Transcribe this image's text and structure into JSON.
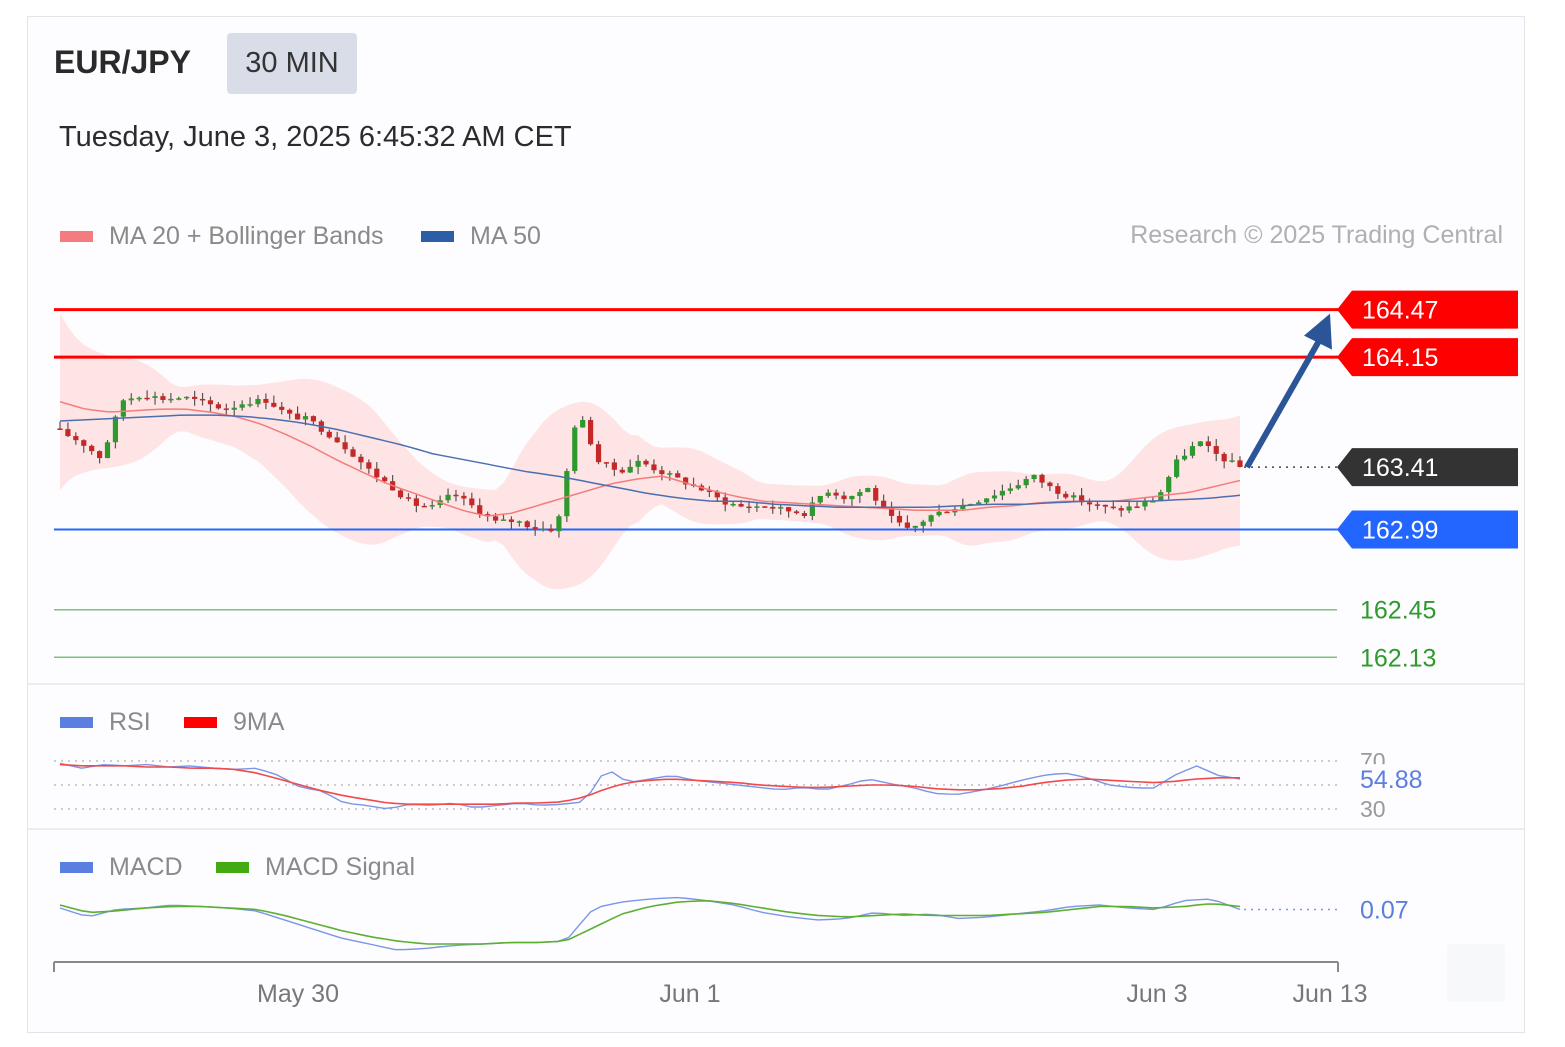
{
  "header": {
    "symbol": "EUR/JPY",
    "timeframe": "30 MIN",
    "timestamp": "Tuesday, June 3, 2025 6:45:32 AM CET",
    "credit": "Research © 2025 Trading Central"
  },
  "legend": {
    "main": [
      {
        "label": "MA 20 + Bollinger Bands",
        "color": "#f47c7c"
      },
      {
        "label": "MA 50",
        "color": "#2c5ea8"
      }
    ],
    "rsi": [
      {
        "label": "RSI",
        "color": "#5b7fe0"
      },
      {
        "label": "9MA",
        "color": "#ff0000"
      }
    ],
    "macd": [
      {
        "label": "MACD",
        "color": "#5b7fe0"
      },
      {
        "label": "MACD Signal",
        "color": "#44aa11"
      }
    ]
  },
  "chart_data": [
    {
      "type": "candlestick",
      "ylim": [
        161.95,
        164.75
      ],
      "x_ticks": [
        "May 30",
        "Jun 1",
        "Jun 3",
        "Jun 13"
      ],
      "last_price": 163.41,
      "levels": [
        {
          "label": "164.47",
          "value": 164.47,
          "kind": "resistance",
          "color": "#ff0000"
        },
        {
          "label": "164.15",
          "value": 164.15,
          "kind": "resistance",
          "color": "#ff0000"
        },
        {
          "label": "163.41",
          "value": 163.41,
          "kind": "last",
          "color": "#333333"
        },
        {
          "label": "162.99",
          "value": 162.99,
          "kind": "pivot",
          "color": "#2266ff"
        },
        {
          "label": "162.45",
          "value": 162.45,
          "kind": "support",
          "color": "#2e9a2e"
        },
        {
          "label": "162.13",
          "value": 162.13,
          "kind": "support",
          "color": "#2e9a2e"
        }
      ],
      "close_path": [
        163.65,
        163.58,
        163.47,
        163.86,
        163.9,
        163.87,
        163.88,
        163.84,
        163.8,
        163.85,
        163.86,
        163.76,
        163.73,
        163.63,
        163.52,
        163.38,
        163.28,
        163.16,
        163.14,
        163.23,
        163.14,
        163.04,
        163.05,
        163.0,
        162.99,
        163.8,
        163.45,
        163.38,
        163.45,
        163.38,
        163.32,
        163.26,
        163.18,
        163.14,
        163.15,
        163.12,
        163.1,
        163.26,
        163.2,
        163.27,
        163.08,
        162.98,
        163.08,
        163.13,
        163.17,
        163.22,
        163.28,
        163.35,
        163.26,
        163.2,
        163.15,
        163.12,
        163.15,
        163.2,
        163.46,
        163.58,
        163.48,
        163.41
      ],
      "ma20_path": [
        163.85,
        163.8,
        163.78,
        163.79,
        163.8,
        163.8,
        163.78,
        163.75,
        163.7,
        163.63,
        163.55,
        163.46,
        163.38,
        163.3,
        163.24,
        163.18,
        163.12,
        163.08,
        163.1,
        163.15,
        163.2,
        163.25,
        163.3,
        163.33,
        163.35,
        163.3,
        163.25,
        163.21,
        163.18,
        163.17,
        163.16,
        163.15,
        163.14,
        163.13,
        163.12,
        163.12,
        163.12,
        163.14,
        163.15,
        163.17,
        163.18,
        163.18,
        163.18,
        163.2,
        163.22,
        163.24,
        163.28,
        163.32
      ],
      "ma50_path": [
        163.72,
        163.73,
        163.74,
        163.75,
        163.76,
        163.76,
        163.75,
        163.73,
        163.7,
        163.66,
        163.61,
        163.56,
        163.5,
        163.46,
        163.42,
        163.38,
        163.35,
        163.31,
        163.27,
        163.23,
        163.2,
        163.18,
        163.18,
        163.16,
        163.15,
        163.14,
        163.14,
        163.14,
        163.14,
        163.15,
        163.16,
        163.16,
        163.17,
        163.18,
        163.18,
        163.18,
        163.19,
        163.2,
        163.22
      ]
    },
    {
      "type": "line",
      "name": "RSI",
      "ylim": [
        25,
        75
      ],
      "y_ticks": [
        "70",
        "30"
      ],
      "last_value_label": "54.88",
      "rsi_path": [
        68,
        64,
        67,
        66,
        67,
        65,
        66,
        64,
        63,
        64,
        58,
        48,
        45,
        35,
        33,
        30,
        34,
        33,
        35,
        31,
        33,
        35,
        33,
        34,
        36,
        64,
        52,
        55,
        58,
        54,
        52,
        50,
        48,
        46,
        48,
        46,
        50,
        55,
        51,
        48,
        43,
        42,
        45,
        49,
        54,
        58,
        60,
        56,
        50,
        48,
        47,
        58,
        66,
        58,
        55
      ],
      "ma9_path": [
        67,
        66,
        66,
        66,
        65,
        65,
        64,
        64,
        63,
        60,
        55,
        50,
        45,
        41,
        38,
        35,
        34,
        34,
        34,
        34,
        34,
        35,
        35,
        36,
        40,
        47,
        52,
        54,
        55,
        54,
        53,
        52,
        50,
        49,
        48,
        48,
        49,
        50,
        50,
        49,
        47,
        46,
        46,
        47,
        49,
        52,
        54,
        55,
        54,
        53,
        52,
        53,
        55,
        56,
        56
      ]
    },
    {
      "type": "line",
      "name": "MACD",
      "last_value_label": "0.07",
      "macd_path": [
        0.08,
        0.02,
        0.07,
        0.08,
        0.1,
        0.09,
        0.08,
        0.06,
        0.0,
        -0.06,
        -0.12,
        -0.16,
        -0.2,
        -0.19,
        -0.17,
        -0.16,
        -0.15,
        -0.15,
        -0.14,
        0.08,
        0.12,
        0.14,
        0.15,
        0.13,
        0.1,
        0.05,
        0.02,
        0.0,
        0.01,
        0.05,
        0.03,
        0.04,
        0.01,
        0.02,
        0.04,
        0.06,
        0.09,
        0.1,
        0.08,
        0.07,
        0.13,
        0.14,
        0.07
      ],
      "signal_path": [
        0.1,
        0.05,
        0.06,
        0.08,
        0.09,
        0.09,
        0.08,
        0.07,
        0.03,
        -0.02,
        -0.07,
        -0.11,
        -0.14,
        -0.16,
        -0.16,
        -0.16,
        -0.15,
        -0.15,
        -0.14,
        -0.05,
        0.04,
        0.09,
        0.12,
        0.13,
        0.11,
        0.08,
        0.05,
        0.03,
        0.02,
        0.03,
        0.04,
        0.03,
        0.03,
        0.03,
        0.04,
        0.05,
        0.07,
        0.09,
        0.09,
        0.08,
        0.09,
        0.11,
        0.09
      ]
    }
  ]
}
